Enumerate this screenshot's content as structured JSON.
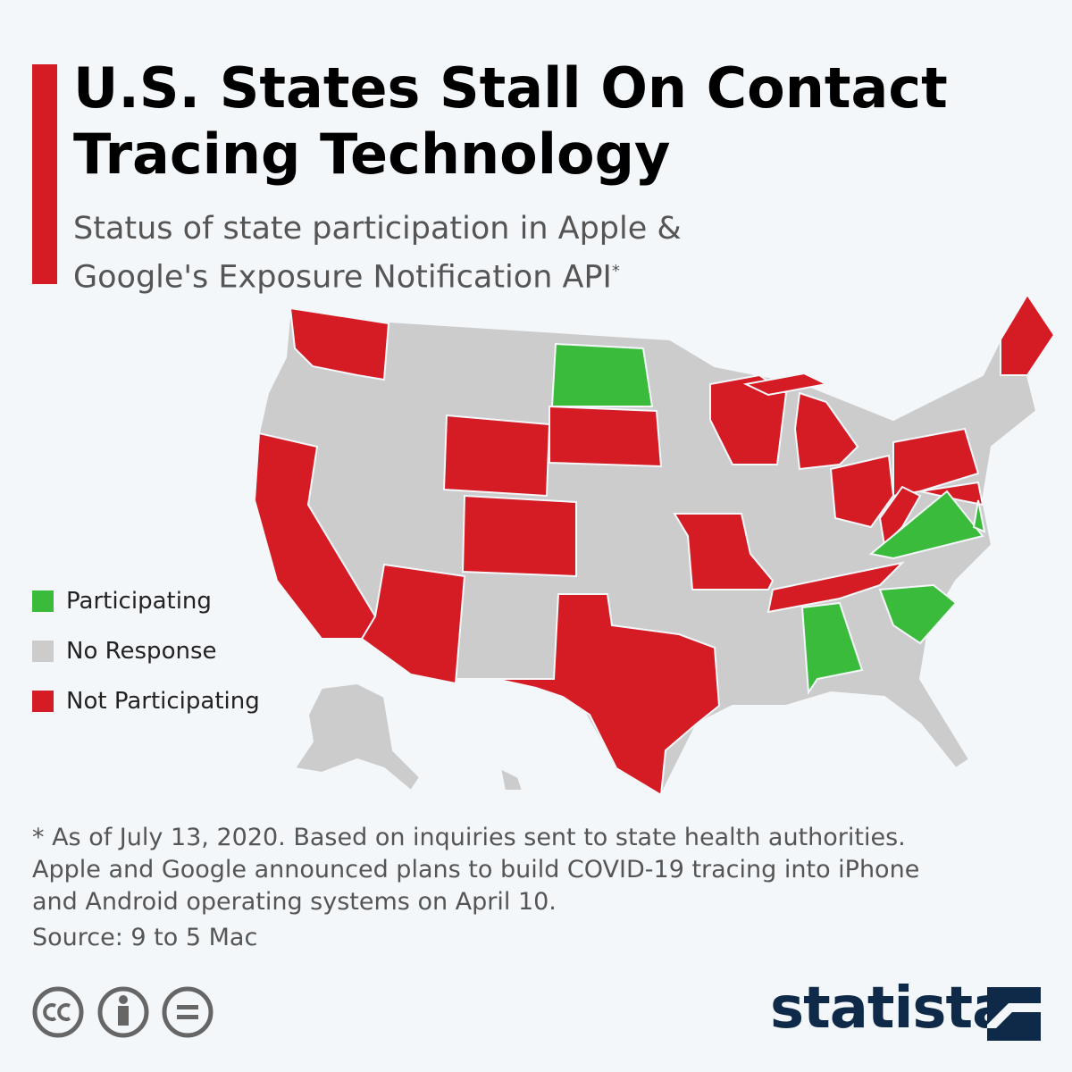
{
  "header": {
    "title": "U.S. States Stall On Contact Tracing Technology",
    "subtitle": "Status of state participation in Apple & Google's Exposure Notification API",
    "subtitle_mark": "*"
  },
  "legend": {
    "items": [
      {
        "name": "Participating",
        "color": "#3bbb3b"
      },
      {
        "name": "No Response",
        "color": "#cccccc"
      },
      {
        "name": "Not Participating",
        "color": "#d51b24"
      }
    ]
  },
  "footer": {
    "note": "* As of July 13, 2020. Based on inquiries sent to state health authorities. Apple and Google announced plans to build COVID-19 tracing into iPhone and Android operating systems on April 10.",
    "source": "Source: 9 to 5 Mac",
    "brand": "statista"
  }
}
